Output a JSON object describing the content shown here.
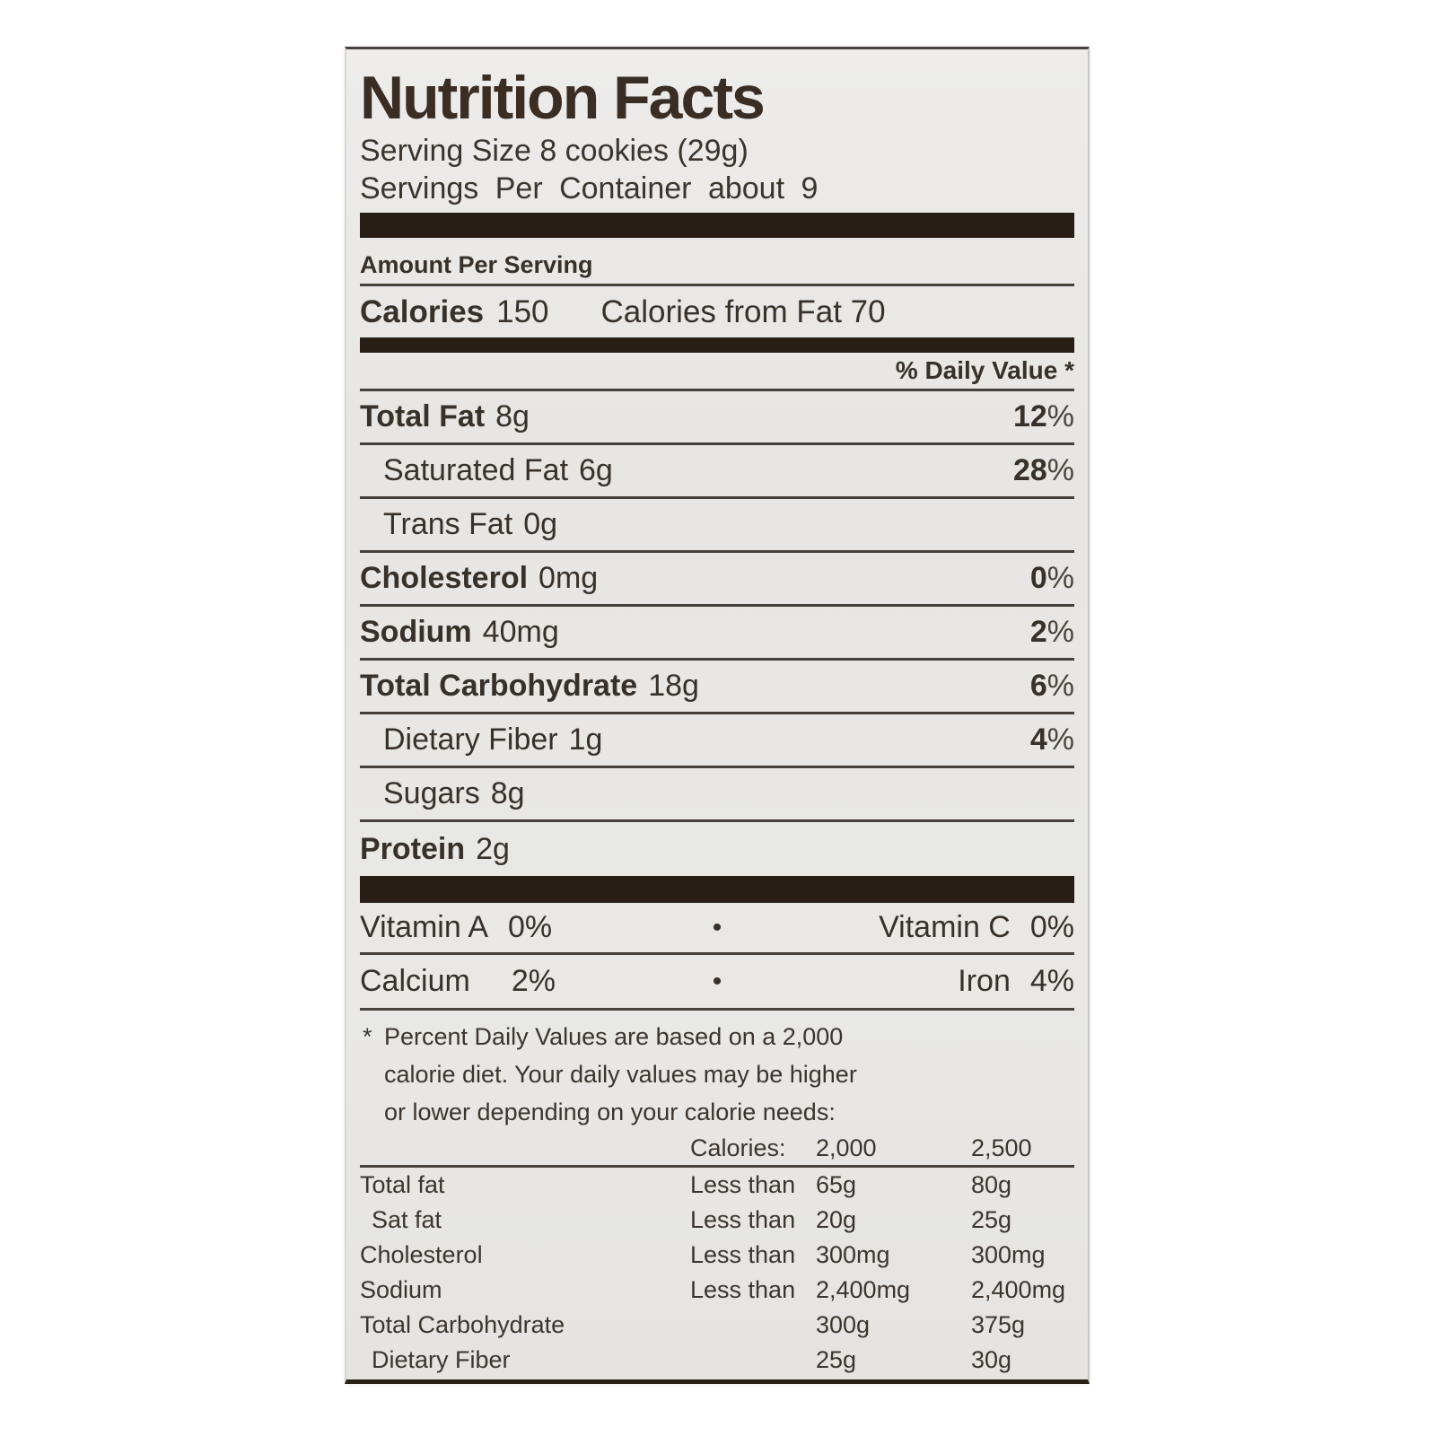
{
  "title": "Nutrition Facts",
  "serving": {
    "size": "Serving Size 8 cookies (29g)",
    "per_container": "Servings Per Container about 9"
  },
  "amount_per_serving": "Amount Per Serving",
  "calories": {
    "label": "Calories",
    "value": "150",
    "from_fat": "Calories from Fat 70"
  },
  "daily_value_header": "% Daily Value *",
  "percent_sign": "%",
  "nutrients": [
    {
      "name": "Total Fat",
      "amount": "8g",
      "dv": "12"
    },
    {
      "name": "Saturated Fat",
      "amount": "6g",
      "dv": "28"
    },
    {
      "name": "Trans Fat",
      "amount": "0g",
      "dv": ""
    },
    {
      "name": "Cholesterol",
      "amount": "0mg",
      "dv": "0"
    },
    {
      "name": "Sodium",
      "amount": "40mg",
      "dv": "2"
    },
    {
      "name": "Total Carbohydrate",
      "amount": "18g",
      "dv": "6"
    },
    {
      "name": "Dietary Fiber",
      "amount": "1g",
      "dv": "4"
    },
    {
      "name": "Sugars",
      "amount": "8g",
      "dv": ""
    },
    {
      "name": "Protein",
      "amount": "2g",
      "dv": ""
    }
  ],
  "micronutrients": {
    "bullet": "•",
    "row1": {
      "left_name": "Vitamin A",
      "left_value": "0%",
      "right_name": "Vitamin C",
      "right_value": "0%"
    },
    "row2": {
      "left_name": "Calcium",
      "left_value": "2%",
      "right_name": "Iron",
      "right_value": "4%"
    }
  },
  "footnote": {
    "marker": "*",
    "lines": [
      "Percent Daily Values are based on a 2,000",
      "calorie diet. Your daily values may be higher",
      "or lower depending on your calorie needs:"
    ]
  },
  "reference_table": {
    "header": {
      "label": "Calories:",
      "col_2000": "2,000",
      "col_2500": "2,500"
    },
    "rows": [
      {
        "label": "Total fat",
        "qualifier": "Less than",
        "v2000": "65g",
        "v2500": "80g"
      },
      {
        "label": "Sat fat",
        "qualifier": "Less than",
        "v2000": "20g",
        "v2500": "25g"
      },
      {
        "label": "Cholesterol",
        "qualifier": "Less than",
        "v2000": "300mg",
        "v2500": "300mg"
      },
      {
        "label": "Sodium",
        "qualifier": "Less than",
        "v2000": "2,400mg",
        "v2500": "2,400mg"
      },
      {
        "label": "Total Carbohydrate",
        "qualifier": "",
        "v2000": "300g",
        "v2500": "375g"
      },
      {
        "label": "Dietary Fiber",
        "qualifier": "",
        "v2000": "25g",
        "v2500": "30g"
      }
    ]
  },
  "colors": {
    "text": "#38312a",
    "bar": "#281e15",
    "label_bg": "#e8e7e4",
    "page_bg": "#ffffff"
  }
}
